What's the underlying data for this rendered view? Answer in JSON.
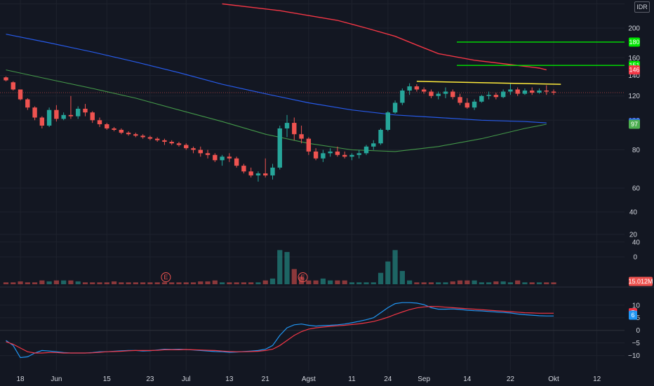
{
  "currency": "IDR",
  "colors": {
    "bg": "#131722",
    "grid": "#1e222d",
    "text": "#d1d4dc",
    "up": "#26a69a",
    "down": "#ef5350",
    "ma_red": "#f23645",
    "ma_blue": "#2962ff",
    "ma_green": "#4caf50",
    "trendline": "#ffeb3b",
    "target": "#00e600",
    "macd": "#2196f3",
    "signal": "#f23645"
  },
  "chart_data": {
    "type": "candlestick",
    "x_ticks": [
      {
        "label": "18",
        "i": 2
      },
      {
        "label": "Jun",
        "i": 7
      },
      {
        "label": "15",
        "i": 14
      },
      {
        "label": "23",
        "i": 20
      },
      {
        "label": "Jul",
        "i": 25
      },
      {
        "label": "13",
        "i": 31
      },
      {
        "label": "21",
        "i": 36
      },
      {
        "label": "Agst",
        "i": 42
      },
      {
        "label": "11",
        "i": 48
      },
      {
        "label": "24",
        "i": 53
      },
      {
        "label": "Sep",
        "i": 58
      },
      {
        "label": "14",
        "i": 64
      },
      {
        "label": "22",
        "i": 70
      },
      {
        "label": "Okt",
        "i": 76
      },
      {
        "label": "12",
        "i": 82
      }
    ],
    "price_axis": {
      "scale": "log",
      "ticks": [
        40,
        60,
        80,
        100,
        120,
        140,
        160,
        200
      ],
      "range": [
        30,
        240
      ]
    },
    "candles": [
      [
        138,
        139,
        134,
        135
      ],
      [
        133,
        134,
        125,
        126
      ],
      [
        126,
        126,
        116,
        117
      ],
      [
        117,
        118,
        108,
        110
      ],
      [
        110,
        111,
        100,
        102
      ],
      [
        102,
        103,
        94,
        96
      ],
      [
        96,
        110,
        95,
        108
      ],
      [
        108,
        112,
        99,
        101
      ],
      [
        101,
        106,
        100,
        104
      ],
      [
        104,
        120,
        101,
        103
      ],
      [
        103,
        111,
        101,
        109
      ],
      [
        109,
        113,
        103,
        106
      ],
      [
        106,
        107,
        98,
        100
      ],
      [
        100,
        102,
        95,
        97
      ],
      [
        97,
        98,
        93,
        94
      ],
      [
        94,
        95,
        92,
        93
      ],
      [
        93,
        94,
        90,
        91
      ],
      [
        91,
        92,
        89,
        90
      ],
      [
        90,
        91,
        88,
        89
      ],
      [
        89,
        90,
        87,
        88
      ],
      [
        88,
        89,
        86,
        87
      ],
      [
        87,
        88,
        85,
        86
      ],
      [
        86,
        87,
        83,
        85
      ],
      [
        85,
        86,
        83,
        84
      ],
      [
        84,
        85,
        82,
        83
      ],
      [
        83,
        84,
        80,
        81
      ],
      [
        81,
        82,
        78,
        80
      ],
      [
        80,
        82,
        76,
        78
      ],
      [
        78,
        80,
        75,
        77
      ],
      [
        77,
        78,
        73,
        74
      ],
      [
        74,
        77,
        71,
        76
      ],
      [
        76,
        78,
        73,
        75
      ],
      [
        75,
        76,
        70,
        71
      ],
      [
        71,
        72,
        67,
        68
      ],
      [
        68,
        70,
        65,
        66
      ],
      [
        66,
        68,
        63,
        67
      ],
      [
        67,
        75,
        65,
        66
      ],
      [
        66,
        72,
        64,
        70
      ],
      [
        70,
        96,
        69,
        94
      ],
      [
        94,
        104,
        88,
        98
      ],
      [
        98,
        102,
        86,
        90
      ],
      [
        90,
        96,
        84,
        87
      ],
      [
        87,
        88,
        77,
        79
      ],
      [
        79,
        81,
        74,
        75
      ],
      [
        75,
        80,
        73,
        78
      ],
      [
        78,
        81,
        76,
        79
      ],
      [
        79,
        82,
        76,
        77
      ],
      [
        77,
        79,
        75,
        76
      ],
      [
        76,
        78,
        74,
        77
      ],
      [
        77,
        80,
        75,
        78
      ],
      [
        78,
        83,
        77,
        82
      ],
      [
        82,
        86,
        80,
        84
      ],
      [
        84,
        94,
        83,
        93
      ],
      [
        93,
        107,
        92,
        106
      ],
      [
        106,
        116,
        105,
        114
      ],
      [
        114,
        127,
        112,
        125
      ],
      [
        125,
        132,
        121,
        129
      ],
      [
        129,
        131,
        124,
        126
      ],
      [
        126,
        128,
        122,
        124
      ],
      [
        124,
        126,
        118,
        120
      ],
      [
        120,
        124,
        117,
        122
      ],
      [
        122,
        128,
        118,
        124
      ],
      [
        124,
        126,
        117,
        119
      ],
      [
        119,
        122,
        112,
        114
      ],
      [
        114,
        118,
        109,
        110
      ],
      [
        110,
        117,
        108,
        115
      ],
      [
        115,
        121,
        114,
        120
      ],
      [
        120,
        124,
        117,
        121
      ],
      [
        121,
        123,
        117,
        119
      ],
      [
        119,
        126,
        118,
        124
      ],
      [
        124,
        132,
        121,
        126
      ],
      [
        126,
        128,
        120,
        122
      ],
      [
        122,
        127,
        121,
        125
      ],
      [
        125,
        128,
        121,
        123
      ],
      [
        123,
        127,
        122,
        125
      ],
      [
        125,
        130,
        121,
        124
      ],
      [
        124,
        126,
        121,
        123
      ]
    ],
    "volume_axis": {
      "ticks": [
        0,
        20,
        40
      ],
      "max": 47
    },
    "volume": [
      1,
      1,
      1.5,
      1,
      1,
      2,
      1.5,
      2,
      2,
      2,
      1.5,
      1,
      1,
      1,
      1,
      1.5,
      1,
      1,
      1,
      1,
      1,
      1,
      1,
      1,
      1,
      1,
      1,
      1.5,
      1.5,
      2,
      1,
      1,
      1,
      1,
      1,
      1,
      2,
      3,
      18,
      17,
      8,
      4,
      2,
      2,
      3,
      2,
      2,
      2,
      1,
      1,
      1,
      1,
      6,
      12,
      18,
      7,
      2,
      1,
      1,
      1,
      1,
      1,
      1.5,
      2,
      2,
      2,
      1,
      1,
      1.5,
      1.5,
      1,
      2,
      1,
      1,
      1,
      1,
      1
    ],
    "volume_label": "15.012M",
    "earnings_markers": [
      {
        "label": "E",
        "i": 22
      },
      {
        "label": "E",
        "i": 41
      }
    ],
    "ma_red": [
      [
        30,
        240
      ],
      [
        38,
        228
      ],
      [
        46,
        212
      ],
      [
        50,
        200
      ],
      [
        54,
        188
      ],
      [
        57,
        176
      ],
      [
        60,
        165
      ],
      [
        65,
        157
      ],
      [
        70,
        152
      ],
      [
        74,
        148
      ],
      [
        75,
        146
      ]
    ],
    "ma_blue": [
      [
        0,
        191
      ],
      [
        6,
        179
      ],
      [
        12,
        167
      ],
      [
        18,
        155
      ],
      [
        24,
        143
      ],
      [
        30,
        131
      ],
      [
        36,
        122
      ],
      [
        42,
        114
      ],
      [
        48,
        108
      ],
      [
        54,
        104
      ],
      [
        60,
        102
      ],
      [
        66,
        100
      ],
      [
        72,
        99
      ],
      [
        75,
        98
      ]
    ],
    "ma_green": [
      [
        0,
        146
      ],
      [
        6,
        136
      ],
      [
        12,
        127
      ],
      [
        18,
        118
      ],
      [
        24,
        108
      ],
      [
        30,
        99
      ],
      [
        36,
        90
      ],
      [
        42,
        84
      ],
      [
        48,
        80
      ],
      [
        54,
        79
      ],
      [
        60,
        82
      ],
      [
        66,
        87
      ],
      [
        72,
        94
      ],
      [
        75,
        97
      ]
    ],
    "trendline": [
      [
        57,
        134
      ],
      [
        77,
        131
      ]
    ],
    "target_lines": [
      {
        "value": 180,
        "i0": 60,
        "i1": 82
      },
      {
        "value": 151,
        "i0": 60,
        "i1": 82
      }
    ],
    "price_labels": [
      {
        "text": "180",
        "value": 180,
        "color": "#00e600",
        "fg": "#131722"
      },
      {
        "text": "151",
        "value": 151,
        "color": "#00e600",
        "fg": "#131722"
      },
      {
        "text": "146",
        "value": 146,
        "color": "#f23645",
        "fg": "#ffffff"
      },
      {
        "text": "98",
        "value": 98,
        "color": "#2962ff",
        "fg": "#ffffff"
      },
      {
        "text": "97",
        "value": 97,
        "color": "#4caf50",
        "fg": "#ffffff"
      }
    ],
    "macd_axis": {
      "ticks": [
        10,
        5,
        0,
        -5,
        -10
      ],
      "range": [
        -14,
        13
      ]
    },
    "macd": [
      [
        -4,
        -4.5
      ],
      [
        -6,
        -5.5
      ],
      [
        -10.8,
        -7
      ],
      [
        -10.5,
        -8.5
      ],
      [
        -9,
        -9
      ],
      [
        -8,
        -9
      ],
      [
        -8.2,
        -8.8
      ],
      [
        -8.5,
        -8.8
      ],
      [
        -8.8,
        -9
      ],
      [
        -9,
        -9
      ],
      [
        -9,
        -9
      ],
      [
        -9,
        -9
      ],
      [
        -8.8,
        -8.9
      ],
      [
        -8.5,
        -8.7
      ],
      [
        -8.5,
        -8.5
      ],
      [
        -8.3,
        -8.4
      ],
      [
        -8.1,
        -8.3
      ],
      [
        -8,
        -8.1
      ],
      [
        -8,
        -8
      ],
      [
        -8.2,
        -8
      ],
      [
        -8.1,
        -8
      ],
      [
        -7.8,
        -7.9
      ],
      [
        -7.5,
        -7.7
      ],
      [
        -7.6,
        -7.7
      ],
      [
        -7.5,
        -7.7
      ],
      [
        -7.6,
        -7.6
      ],
      [
        -7.8,
        -7.7
      ],
      [
        -8,
        -7.8
      ],
      [
        -8.2,
        -7.9
      ],
      [
        -8.4,
        -8
      ],
      [
        -8.5,
        -8.2
      ],
      [
        -8.7,
        -8.4
      ],
      [
        -8.6,
        -8.5
      ],
      [
        -8.4,
        -8.5
      ],
      [
        -8.2,
        -8.4
      ],
      [
        -8.0,
        -8.3
      ],
      [
        -7.5,
        -8.0
      ],
      [
        -6,
        -7.5
      ],
      [
        -2,
        -6
      ],
      [
        1,
        -4
      ],
      [
        2.2,
        -2
      ],
      [
        2.5,
        -0.5
      ],
      [
        2,
        0.5
      ],
      [
        1.7,
        1.0
      ],
      [
        1.9,
        1.3
      ],
      [
        2.0,
        1.6
      ],
      [
        2.2,
        1.8
      ],
      [
        2.5,
        2.0
      ],
      [
        3.0,
        2.3
      ],
      [
        3.6,
        2.6
      ],
      [
        4.2,
        3.0
      ],
      [
        5.0,
        3.5
      ],
      [
        7,
        4.3
      ],
      [
        9,
        5.2
      ],
      [
        10.6,
        6.3
      ],
      [
        11,
        7.3
      ],
      [
        11,
        8.2
      ],
      [
        10.8,
        8.9
      ],
      [
        10.2,
        9.3
      ],
      [
        9.0,
        9.5
      ],
      [
        8.4,
        9.4
      ],
      [
        8.4,
        9.2
      ],
      [
        8.5,
        9.0
      ],
      [
        8.3,
        8.8
      ],
      [
        8.0,
        8.6
      ],
      [
        7.8,
        8.4
      ],
      [
        7.7,
        8.2
      ],
      [
        7.5,
        8.0
      ],
      [
        7.3,
        7.8
      ],
      [
        7.1,
        7.6
      ],
      [
        6.9,
        7.4
      ],
      [
        6.5,
        7.2
      ],
      [
        6.2,
        7.0
      ],
      [
        6.0,
        6.9
      ],
      [
        5.8,
        6.8
      ],
      [
        5.7,
        6.8
      ],
      [
        5.7,
        6.8
      ]
    ],
    "macd_labels": [
      {
        "text": "7",
        "value": 7,
        "color": "#f23645"
      },
      {
        "text": "6",
        "value": 6,
        "color": "#2196f3"
      }
    ]
  }
}
